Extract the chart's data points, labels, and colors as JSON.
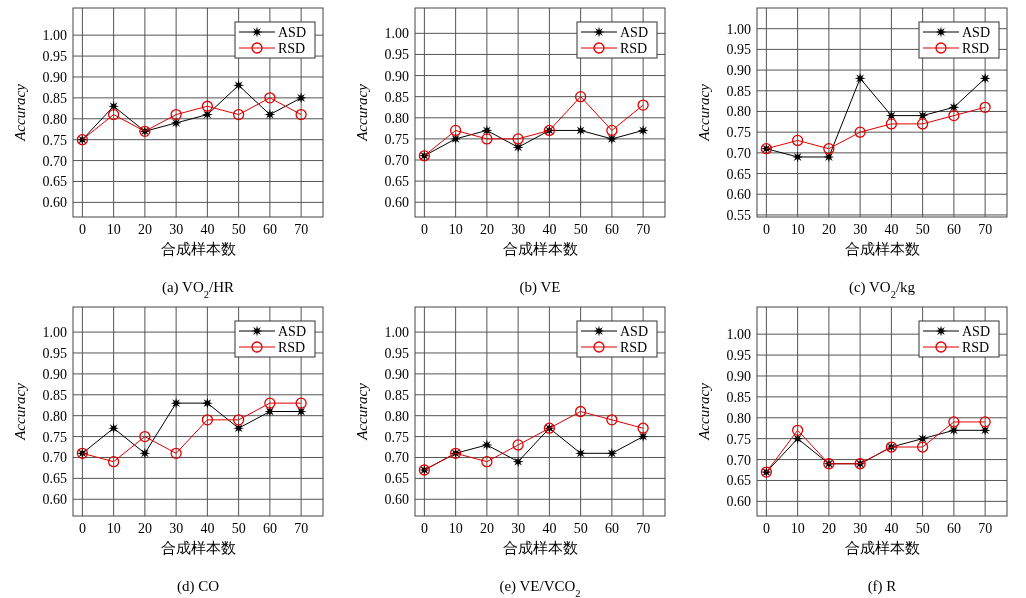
{
  "chart_data": [
    {
      "type": "line",
      "title": "(a) VO$_{2}$/HR",
      "xlabel": "合成样本数",
      "ylabel": "Accuracy",
      "x": [
        0,
        10,
        20,
        30,
        40,
        50,
        60,
        70
      ],
      "xlim": [
        -3,
        77
      ],
      "ylim": [
        0.565,
        1.065
      ],
      "xticks": [
        0,
        10,
        20,
        30,
        40,
        50,
        60,
        70
      ],
      "yticks": [
        {
          "value": 0.6,
          "label": "0.60"
        },
        {
          "value": 0.65,
          "label": "0.65"
        },
        {
          "value": 0.7,
          "label": "0.70"
        },
        {
          "value": 0.75,
          "label": "0.75"
        },
        {
          "value": 0.8,
          "label": "0.80"
        },
        {
          "value": 0.85,
          "label": "0.85"
        },
        {
          "value": 0.9,
          "label": "0.90"
        },
        {
          "value": 0.95,
          "label": "0.95"
        },
        {
          "value": 1.0,
          "label": "1.00"
        }
      ],
      "grid": true,
      "legend": "top right",
      "series": [
        {
          "name": "ASD",
          "color": "#000000",
          "marker": "star",
          "values": [
            0.75,
            0.83,
            0.77,
            0.79,
            0.81,
            0.88,
            0.81,
            0.85
          ]
        },
        {
          "name": "RSD",
          "color": "#e00000",
          "marker": "circle",
          "values": [
            0.75,
            0.81,
            0.77,
            0.81,
            0.83,
            0.81,
            0.85,
            0.81
          ]
        }
      ]
    },
    {
      "type": "line",
      "title": "(b) VE",
      "xlabel": "合成样本数",
      "ylabel": "Accuracy",
      "x": [
        0,
        10,
        20,
        30,
        40,
        50,
        60,
        70
      ],
      "xlim": [
        -3,
        77
      ],
      "ylim": [
        0.565,
        1.06
      ],
      "xticks": [
        0,
        10,
        20,
        30,
        40,
        50,
        60,
        70
      ],
      "yticks": [
        {
          "value": 0.6,
          "label": "0.60"
        },
        {
          "value": 0.65,
          "label": "0.65"
        },
        {
          "value": 0.7,
          "label": "0.70"
        },
        {
          "value": 0.75,
          "label": "0.75"
        },
        {
          "value": 0.8,
          "label": "0.80"
        },
        {
          "value": 0.85,
          "label": "0.85"
        },
        {
          "value": 0.9,
          "label": "0.90"
        },
        {
          "value": 0.95,
          "label": "0.95"
        },
        {
          "value": 1.0,
          "label": "1.00"
        }
      ],
      "grid": true,
      "legend": "top right",
      "series": [
        {
          "name": "ASD",
          "color": "#000000",
          "marker": "star",
          "values": [
            0.71,
            0.75,
            0.77,
            0.73,
            0.77,
            0.77,
            0.75,
            0.77
          ]
        },
        {
          "name": "RSD",
          "color": "#e00000",
          "marker": "circle",
          "values": [
            0.71,
            0.77,
            0.75,
            0.75,
            0.77,
            0.85,
            0.77,
            0.83
          ]
        }
      ]
    },
    {
      "type": "line",
      "title": "(c) VO$_{2}$/kg",
      "xlabel": "合成样本数",
      "ylabel": "Accuracy",
      "x": [
        0,
        10,
        20,
        30,
        40,
        50,
        60,
        70
      ],
      "xlim": [
        -3,
        77
      ],
      "ylim": [
        0.545,
        1.05
      ],
      "xticks": [
        0,
        10,
        20,
        30,
        40,
        50,
        60,
        70
      ],
      "yticks": [
        {
          "value": 0.55,
          "label": "0.55"
        },
        {
          "value": 0.6,
          "label": "0.60"
        },
        {
          "value": 0.65,
          "label": "0.65"
        },
        {
          "value": 0.7,
          "label": "0.70"
        },
        {
          "value": 0.75,
          "label": "0.75"
        },
        {
          "value": 0.8,
          "label": "0.80"
        },
        {
          "value": 0.85,
          "label": "0.85"
        },
        {
          "value": 0.9,
          "label": "0.90"
        },
        {
          "value": 0.95,
          "label": "0.95"
        },
        {
          "value": 1.0,
          "label": "1.00"
        }
      ],
      "grid": true,
      "legend": "top right",
      "series": [
        {
          "name": "ASD",
          "color": "#000000",
          "marker": "star",
          "values": [
            0.71,
            0.69,
            0.69,
            0.88,
            0.79,
            0.79,
            0.81,
            0.88
          ]
        },
        {
          "name": "RSD",
          "color": "#e00000",
          "marker": "circle",
          "values": [
            0.71,
            0.73,
            0.71,
            0.75,
            0.77,
            0.77,
            0.79,
            0.81
          ]
        }
      ]
    },
    {
      "type": "line",
      "title": "(d) CO",
      "xlabel": "合成样本数",
      "ylabel": "Accuracy",
      "x": [
        0,
        10,
        20,
        30,
        40,
        50,
        60,
        70
      ],
      "xlim": [
        -3,
        77
      ],
      "ylim": [
        0.56,
        1.06
      ],
      "xticks": [
        0,
        10,
        20,
        30,
        40,
        50,
        60,
        70
      ],
      "yticks": [
        {
          "value": 0.6,
          "label": "0.60"
        },
        {
          "value": 0.65,
          "label": "0.65"
        },
        {
          "value": 0.7,
          "label": "0.70"
        },
        {
          "value": 0.75,
          "label": "0.75"
        },
        {
          "value": 0.8,
          "label": "0.80"
        },
        {
          "value": 0.85,
          "label": "0.85"
        },
        {
          "value": 0.9,
          "label": "0.90"
        },
        {
          "value": 0.95,
          "label": "0.95"
        },
        {
          "value": 1.0,
          "label": "1.00"
        }
      ],
      "grid": true,
      "legend": "top right",
      "series": [
        {
          "name": "ASD",
          "color": "#000000",
          "marker": "star",
          "values": [
            0.71,
            0.77,
            0.71,
            0.83,
            0.83,
            0.77,
            0.81,
            0.81
          ]
        },
        {
          "name": "RSD",
          "color": "#e00000",
          "marker": "circle",
          "values": [
            0.71,
            0.69,
            0.75,
            0.71,
            0.79,
            0.79,
            0.83,
            0.83
          ]
        }
      ]
    },
    {
      "type": "line",
      "title": "(e) VE/VCO$_{2}$",
      "xlabel": "合成样本数",
      "ylabel": "Accuracy",
      "x": [
        0,
        10,
        20,
        30,
        40,
        50,
        60,
        70
      ],
      "xlim": [
        -3,
        77
      ],
      "ylim": [
        0.56,
        1.06
      ],
      "xticks": [
        0,
        10,
        20,
        30,
        40,
        50,
        60,
        70
      ],
      "yticks": [
        {
          "value": 0.6,
          "label": "0.60"
        },
        {
          "value": 0.65,
          "label": "0.65"
        },
        {
          "value": 0.7,
          "label": "0.70"
        },
        {
          "value": 0.75,
          "label": "0.75"
        },
        {
          "value": 0.8,
          "label": "0.80"
        },
        {
          "value": 0.85,
          "label": "0.85"
        },
        {
          "value": 0.9,
          "label": "0.90"
        },
        {
          "value": 0.95,
          "label": "0.95"
        },
        {
          "value": 1.0,
          "label": "1.00"
        }
      ],
      "grid": true,
      "legend": "top right",
      "series": [
        {
          "name": "ASD",
          "color": "#000000",
          "marker": "star",
          "values": [
            0.67,
            0.71,
            0.73,
            0.69,
            0.77,
            0.71,
            0.71,
            0.75
          ]
        },
        {
          "name": "RSD",
          "color": "#e00000",
          "marker": "circle",
          "values": [
            0.67,
            0.71,
            0.69,
            0.73,
            0.77,
            0.81,
            0.79,
            0.77
          ]
        }
      ]
    },
    {
      "type": "line",
      "title": "(f) R",
      "xlabel": "合成样本数",
      "ylabel": "Accuracy",
      "x": [
        0,
        10,
        20,
        30,
        40,
        50,
        60,
        70
      ],
      "xlim": [
        -3,
        77
      ],
      "ylim": [
        0.565,
        1.065
      ],
      "xticks": [
        0,
        10,
        20,
        30,
        40,
        50,
        60,
        70
      ],
      "yticks": [
        {
          "value": 0.6,
          "label": "0.60"
        },
        {
          "value": 0.65,
          "label": "0.65"
        },
        {
          "value": 0.7,
          "label": "0.70"
        },
        {
          "value": 0.75,
          "label": "0.75"
        },
        {
          "value": 0.8,
          "label": "0.80"
        },
        {
          "value": 0.85,
          "label": "0.85"
        },
        {
          "value": 0.9,
          "label": "0.90"
        },
        {
          "value": 0.95,
          "label": "0.95"
        },
        {
          "value": 1.0,
          "label": "1.00"
        }
      ],
      "grid": true,
      "legend": "top right",
      "series": [
        {
          "name": "ASD",
          "color": "#000000",
          "marker": "star",
          "values": [
            0.67,
            0.75,
            0.69,
            0.69,
            0.73,
            0.75,
            0.77,
            0.77
          ]
        },
        {
          "name": "RSD",
          "color": "#e00000",
          "marker": "circle",
          "values": [
            0.67,
            0.77,
            0.69,
            0.69,
            0.73,
            0.73,
            0.79,
            0.79
          ]
        }
      ]
    }
  ]
}
